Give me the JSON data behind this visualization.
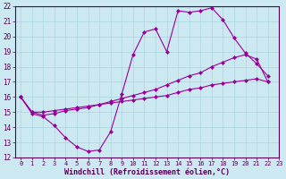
{
  "xlabel": "Windchill (Refroidissement éolien,°C)",
  "xlim": [
    -0.5,
    23
  ],
  "ylim": [
    12,
    22
  ],
  "xticks": [
    0,
    1,
    2,
    3,
    4,
    5,
    6,
    7,
    8,
    9,
    10,
    11,
    12,
    13,
    14,
    15,
    16,
    17,
    18,
    19,
    20,
    21,
    22,
    23
  ],
  "yticks": [
    12,
    13,
    14,
    15,
    16,
    17,
    18,
    19,
    20,
    21,
    22
  ],
  "bg_color": "#cce8f0",
  "grid_color": "#aad4e0",
  "line_color": "#990099",
  "line1_x": [
    0,
    1,
    2,
    3,
    4,
    5,
    6,
    7,
    8,
    9,
    10,
    11,
    12,
    13,
    14,
    15,
    16,
    17,
    18,
    19,
    20,
    21,
    22
  ],
  "line1_y": [
    16.0,
    14.9,
    14.7,
    14.1,
    13.3,
    12.7,
    12.4,
    12.5,
    13.7,
    16.2,
    18.8,
    20.3,
    20.5,
    19.0,
    21.7,
    21.6,
    21.7,
    21.9,
    21.1,
    19.9,
    18.9,
    18.2,
    17.4
  ],
  "line2_x": [
    0,
    1,
    2,
    3,
    4,
    5,
    6,
    7,
    8,
    9,
    10,
    11,
    12,
    13,
    14,
    15,
    16,
    17,
    18,
    19,
    20,
    21,
    22
  ],
  "line2_y": [
    16.0,
    15.0,
    14.8,
    14.9,
    15.1,
    15.2,
    15.3,
    15.5,
    15.7,
    15.9,
    16.1,
    16.3,
    16.5,
    16.8,
    17.1,
    17.4,
    17.6,
    18.0,
    18.3,
    18.6,
    18.8,
    18.5,
    17.0
  ],
  "line3_x": [
    0,
    1,
    2,
    3,
    4,
    5,
    6,
    7,
    8,
    9,
    10,
    11,
    12,
    13,
    14,
    15,
    16,
    17,
    18,
    19,
    20,
    21,
    22
  ],
  "line3_y": [
    16.0,
    15.0,
    15.0,
    15.1,
    15.2,
    15.3,
    15.4,
    15.5,
    15.6,
    15.7,
    15.8,
    15.9,
    16.0,
    16.1,
    16.3,
    16.5,
    16.6,
    16.8,
    16.9,
    17.0,
    17.1,
    17.2,
    17.0
  ],
  "marker": "D",
  "markersize": 2.0,
  "linewidth": 0.8,
  "tick_fontsize": 5.0,
  "xlabel_fontsize": 6.0
}
